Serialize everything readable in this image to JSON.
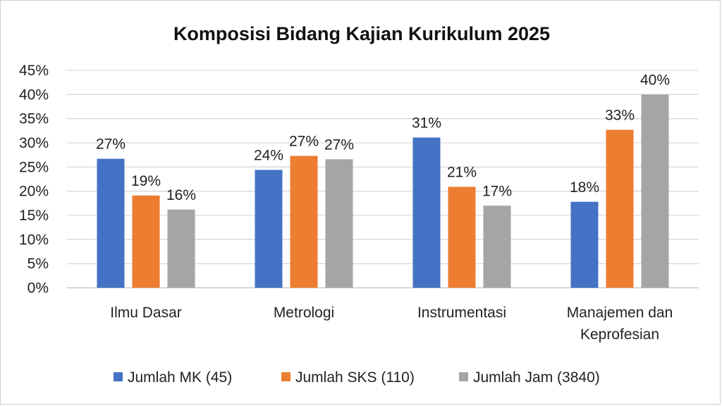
{
  "chart_data": {
    "type": "bar",
    "title": "Komposisi Bidang Kajian Kurikulum 2025",
    "xlabel": "",
    "ylabel": "",
    "categories": [
      [
        "Ilmu Dasar"
      ],
      [
        "Metrologi"
      ],
      [
        "Instrumentasi"
      ],
      [
        "Manajemen dan",
        "Keprofesian"
      ]
    ],
    "series": [
      {
        "name": "Jumlah MK (45)",
        "color": "#4472c4",
        "values": [
          0.267,
          0.244,
          0.311,
          0.178
        ],
        "labels": [
          "27%",
          "24%",
          "31%",
          "18%"
        ]
      },
      {
        "name": "Jumlah SKS (110)",
        "color": "#ed7d31",
        "values": [
          0.191,
          0.273,
          0.209,
          0.327
        ],
        "labels": [
          "19%",
          "27%",
          "21%",
          "33%"
        ]
      },
      {
        "name": "Jumlah Jam (3840)",
        "color": "#a5a5a5",
        "values": [
          0.162,
          0.266,
          0.17,
          0.4
        ],
        "labels": [
          "16%",
          "27%",
          "17%",
          "40%"
        ]
      }
    ],
    "ylim": [
      0,
      0.45
    ],
    "yticks": [
      {
        "value": 0,
        "label": "0%"
      },
      {
        "value": 0.05,
        "label": "5%"
      },
      {
        "value": 0.1,
        "label": "10%"
      },
      {
        "value": 0.15,
        "label": "15%"
      },
      {
        "value": 0.2,
        "label": "20%"
      },
      {
        "value": 0.25,
        "label": "25%"
      },
      {
        "value": 0.3,
        "label": "30%"
      },
      {
        "value": 0.35,
        "label": "35%"
      },
      {
        "value": 0.4,
        "label": "40%"
      },
      {
        "value": 0.45,
        "label": "45%"
      }
    ],
    "grid": true,
    "legend_position": "bottom"
  }
}
